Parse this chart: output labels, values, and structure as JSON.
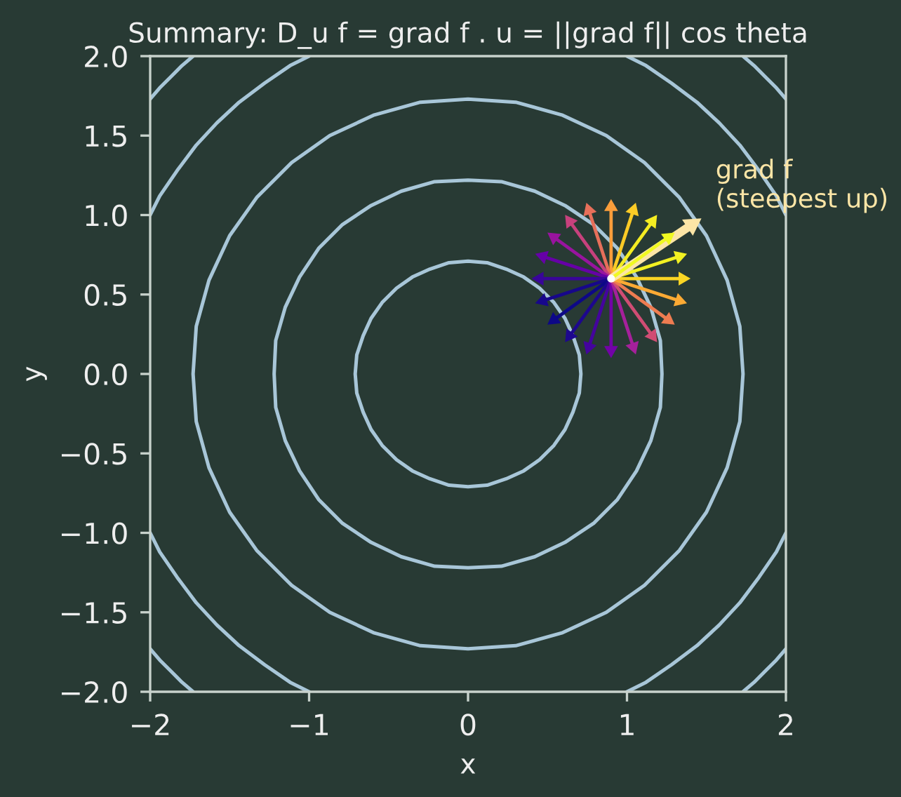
{
  "chart_data": {
    "type": "line",
    "title": "Summary: D_u f = grad f . u = ||grad f|| cos theta",
    "xlabel": "x",
    "ylabel": "y",
    "xlim": [
      -2,
      2
    ],
    "ylim": [
      -2,
      2
    ],
    "xticks": [
      {
        "value": -2,
        "label": "−2"
      },
      {
        "value": -1,
        "label": "−1"
      },
      0,
      1,
      2
    ],
    "yticks": [
      {
        "value": -2.0,
        "label": "−2.0"
      },
      {
        "value": -1.5,
        "label": "−1.5"
      },
      {
        "value": -1.0,
        "label": "−1.0"
      },
      {
        "value": -0.5,
        "label": "−0.5"
      },
      {
        "value": 0.0,
        "label": "0.0"
      },
      {
        "value": 0.5,
        "label": "0.5"
      },
      {
        "value": 1.0,
        "label": "1.0"
      },
      {
        "value": 1.5,
        "label": "1.5"
      },
      {
        "value": 2.0,
        "label": "2.0"
      }
    ],
    "series": [
      {
        "color": "#a8c6d8",
        "x": [
          0.71,
          0.7,
          0.66,
          0.61,
          0.54,
          0.45,
          0.35,
          0.24,
          0.12,
          0,
          -0.12,
          -0.24,
          -0.35,
          -0.45,
          -0.54,
          -0.61,
          -0.66,
          -0.7,
          -0.71,
          -0.7,
          -0.66,
          -0.61,
          -0.54,
          -0.45,
          -0.35,
          -0.24,
          -0.12,
          0,
          0.12,
          0.24,
          0.35,
          0.45,
          0.54,
          0.61,
          0.66,
          0.7,
          0.71,
          0.7,
          0.66
        ],
        "values": [
          0,
          0.12,
          0.24,
          0.35,
          0.45,
          0.54,
          0.61,
          0.66,
          0.7,
          0.71,
          0.7,
          0.66,
          0.61,
          0.54,
          0.45,
          0.35,
          0.24,
          0.12,
          0,
          -0.12,
          -0.24,
          -0.35,
          -0.45,
          -0.54,
          -0.61,
          -0.66,
          -0.7,
          -0.71,
          -0.7,
          -0.66,
          -0.61,
          -0.54,
          -0.45,
          -0.35,
          -0.24,
          -0.12,
          0,
          0.12,
          0.24
        ]
      },
      {
        "color": "#a8c6d8",
        "x": [
          1.22,
          1.21,
          1.15,
          1.06,
          0.94,
          0.79,
          0.61,
          0.42,
          0.21,
          0,
          -0.21,
          -0.42,
          -0.61,
          -0.79,
          -0.94,
          -1.06,
          -1.15,
          -1.21,
          -1.22,
          -1.21,
          -1.15,
          -1.06,
          -0.94,
          -0.79,
          -0.61,
          -0.42,
          -0.21,
          0,
          0.21,
          0.42,
          0.61,
          0.79,
          0.94,
          1.06,
          1.15,
          1.21,
          1.22,
          1.21,
          1.15
        ],
        "values": [
          0,
          0.21,
          0.42,
          0.61,
          0.79,
          0.94,
          1.06,
          1.15,
          1.21,
          1.22,
          1.21,
          1.15,
          1.06,
          0.94,
          0.79,
          0.61,
          0.42,
          0.21,
          0,
          -0.21,
          -0.42,
          -0.61,
          -0.79,
          -0.94,
          -1.06,
          -1.15,
          -1.21,
          -1.22,
          -1.21,
          -1.15,
          -1.06,
          -0.94,
          -0.79,
          -0.61,
          -0.42,
          -0.21,
          0,
          0.21,
          0.42
        ]
      },
      {
        "color": "#a8c6d8",
        "x": [
          1.73,
          1.71,
          1.63,
          1.5,
          1.33,
          1.11,
          0.87,
          0.59,
          0.3,
          0,
          -0.3,
          -0.59,
          -0.87,
          -1.11,
          -1.33,
          -1.5,
          -1.63,
          -1.71,
          -1.73,
          -1.71,
          -1.63,
          -1.5,
          -1.33,
          -1.11,
          -0.87,
          -0.59,
          -0.3,
          0,
          0.3,
          0.59,
          0.87,
          1.11,
          1.33,
          1.5,
          1.63,
          1.71,
          1.73,
          1.71,
          1.63
        ],
        "values": [
          0,
          0.3,
          0.59,
          0.87,
          1.11,
          1.33,
          1.5,
          1.63,
          1.71,
          1.73,
          1.71,
          1.63,
          1.5,
          1.33,
          1.11,
          0.87,
          0.59,
          0.3,
          0,
          -0.3,
          -0.59,
          -0.87,
          -1.11,
          -1.33,
          -1.5,
          -1.63,
          -1.71,
          -1.73,
          -1.71,
          -1.63,
          -1.5,
          -1.33,
          -1.11,
          -0.87,
          -0.59,
          -0.3,
          0,
          0.3,
          0.59
        ]
      },
      {
        "color": "#a8c6d8",
        "x": [
          2,
          1.94,
          1.83,
          1.71,
          1.58,
          1.44,
          1.28,
          1.12,
          1
        ],
        "values": [
          1,
          1.12,
          1.28,
          1.44,
          1.58,
          1.71,
          1.83,
          1.94,
          2
        ]
      },
      {
        "color": "#a8c6d8",
        "x": [
          -1,
          -1.12,
          -1.28,
          -1.44,
          -1.58,
          -1.71,
          -1.83,
          -1.94,
          -2
        ],
        "values": [
          2,
          1.94,
          1.83,
          1.71,
          1.58,
          1.44,
          1.28,
          1.12,
          1
        ]
      },
      {
        "color": "#a8c6d8",
        "x": [
          -2,
          -1.94,
          -1.83,
          -1.71,
          -1.58,
          -1.44,
          -1.28,
          -1.12,
          -1
        ],
        "values": [
          -1,
          -1.12,
          -1.28,
          -1.44,
          -1.58,
          -1.71,
          -1.83,
          -1.94,
          -2
        ]
      },
      {
        "color": "#a8c6d8",
        "x": [
          1,
          1.12,
          1.28,
          1.44,
          1.58,
          1.71,
          1.83,
          1.94,
          2
        ],
        "values": [
          -2,
          -1.94,
          -1.83,
          -1.71,
          -1.58,
          -1.44,
          -1.28,
          -1.12,
          -1
        ]
      },
      {
        "color": "#a8c6d8",
        "x": [
          2,
          1.94,
          1.87,
          1.8,
          1.73
        ],
        "values": [
          1.73,
          1.8,
          1.87,
          1.94,
          2
        ]
      },
      {
        "color": "#a8c6d8",
        "x": [
          -1.73,
          -1.8,
          -1.87,
          -1.94,
          -2
        ],
        "values": [
          2,
          1.94,
          1.87,
          1.8,
          1.73
        ]
      },
      {
        "color": "#a8c6d8",
        "x": [
          -2,
          -1.94,
          -1.87,
          -1.8,
          -1.73
        ],
        "values": [
          -1.73,
          -1.8,
          -1.87,
          -1.94,
          -2
        ]
      },
      {
        "color": "#a8c6d8",
        "x": [
          1.73,
          1.8,
          1.87,
          1.94,
          2
        ],
        "values": [
          -2,
          -1.94,
          -1.87,
          -1.8,
          -1.73
        ]
      },
      {
        "marker": "triangle",
        "color": "#fad524",
        "x": [
          0.9,
          1.35
        ],
        "values": [
          0.6,
          0.6
        ]
      },
      {
        "marker": "triangle",
        "color": "#f2f122",
        "x": [
          0.9,
          1.33
        ],
        "values": [
          0.6,
          0.74
        ]
      },
      {
        "marker": "triangle",
        "color": "#f4ec22",
        "x": [
          0.9,
          1.16
        ],
        "values": [
          0.6,
          0.96
        ]
      },
      {
        "marker": "triangle",
        "color": "#fccb26",
        "x": [
          0.9,
          1.04
        ],
        "values": [
          0.6,
          1.03
        ]
      },
      {
        "marker": "triangle",
        "color": "#fa9e3b",
        "x": [
          0.9,
          0.9
        ],
        "values": [
          0.6,
          1.05
        ]
      },
      {
        "marker": "triangle",
        "color": "#e76f5a",
        "x": [
          0.9,
          0.76
        ],
        "values": [
          0.6,
          1.03
        ]
      },
      {
        "marker": "triangle",
        "color": "#c7417d",
        "x": [
          0.9,
          0.64
        ],
        "values": [
          0.6,
          0.96
        ]
      },
      {
        "marker": "triangle",
        "color": "#98149f",
        "x": [
          0.9,
          0.54
        ],
        "values": [
          0.6,
          0.86
        ]
      },
      {
        "marker": "triangle",
        "color": "#6600a7",
        "x": [
          0.9,
          0.47
        ],
        "values": [
          0.6,
          0.74
        ]
      },
      {
        "marker": "triangle",
        "color": "#390599",
        "x": [
          0.9,
          0.45
        ],
        "values": [
          0.6,
          0.6
        ]
      },
      {
        "marker": "triangle",
        "color": "#17078b",
        "x": [
          0.9,
          0.47
        ],
        "values": [
          0.6,
          0.46
        ]
      },
      {
        "marker": "triangle",
        "color": "#0d0887",
        "x": [
          0.9,
          0.54
        ],
        "values": [
          0.6,
          0.34
        ]
      },
      {
        "marker": "triangle",
        "color": "#1d078e",
        "x": [
          0.9,
          0.64
        ],
        "values": [
          0.6,
          0.24
        ]
      },
      {
        "marker": "triangle",
        "color": "#44049e",
        "x": [
          0.9,
          0.76
        ],
        "values": [
          0.6,
          0.17
        ]
      },
      {
        "marker": "triangle",
        "color": "#7203a7",
        "x": [
          0.9,
          0.9
        ],
        "values": [
          0.6,
          0.15
        ]
      },
      {
        "marker": "triangle",
        "color": "#a5209b",
        "x": [
          0.9,
          1.04
        ],
        "values": [
          0.6,
          0.17
        ]
      },
      {
        "marker": "triangle",
        "color": "#d04d74",
        "x": [
          0.9,
          1.16
        ],
        "values": [
          0.6,
          0.24
        ]
      },
      {
        "marker": "triangle",
        "color": "#ee7c51",
        "x": [
          0.9,
          1.26
        ],
        "values": [
          0.6,
          0.34
        ]
      },
      {
        "marker": "triangle",
        "color": "#fcaa34",
        "x": [
          0.9,
          1.33
        ],
        "values": [
          0.6,
          0.46
        ]
      },
      {
        "marker": "triangle",
        "name": "grad f\n(steepest up)",
        "color": "#fce5a6",
        "x": [
          0.9,
          1.41
        ],
        "values": [
          0.6,
          0.94
        ]
      },
      {
        "marker": "triangle",
        "color": "#f0f921",
        "x": [
          0.9,
          1.26
        ],
        "values": [
          0.6,
          0.86
        ]
      },
      {
        "type": "scatter",
        "color": "#ffffff",
        "x": [
          0.9
        ],
        "values": [
          0.6
        ]
      }
    ]
  }
}
